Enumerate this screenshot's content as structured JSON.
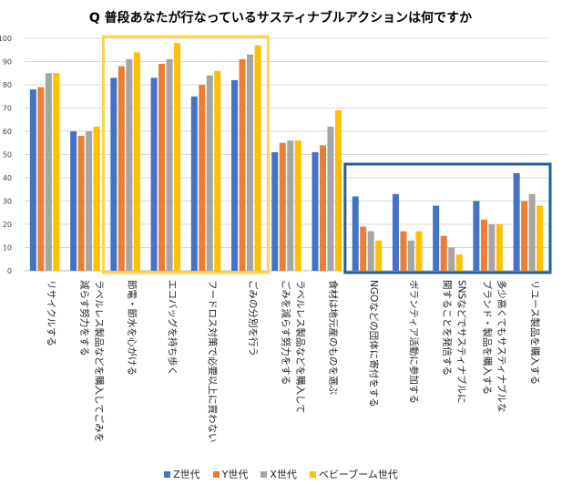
{
  "chart_data": {
    "type": "bar",
    "title": "Q 普段あなたが行なっているサスティナブルアクションは何ですか",
    "ylim": [
      0,
      100
    ],
    "yticks": [
      0,
      10,
      20,
      30,
      40,
      50,
      60,
      70,
      80,
      90,
      100
    ],
    "categories": [
      "リサイクルする",
      "ラベルレス製品などを購入してごみを減らす努力をする",
      "節電・節水を心がける",
      "エコバッグを持ち歩く",
      "フードロス対策で必要以上に買わない",
      "ごみの分別を行う",
      "ラベルレス製品などを購入してごみを減らす努力をする",
      "食材は地元産のものを選ぶ",
      "NGOなどの団体に寄付をする",
      "ボランティア活動に参加する",
      "SNSなどでサスティナブルに関することを発信する",
      "多少高くてもサスティナブルなブランド・製品を購入する",
      "リユース製品を購入する"
    ],
    "category_lines": [
      [
        "リサイクルする"
      ],
      [
        "ラベルレス製品などを購入してごみを",
        "減らす努力をする"
      ],
      [
        "節電・節水を心がける"
      ],
      [
        "エコバッグを持ち歩く"
      ],
      [
        "フードロス対策で必要以上に買わない"
      ],
      [
        "ごみの分別を行う"
      ],
      [
        "ラベルレス製品などを購入して",
        "ごみを減らす努力をする"
      ],
      [
        "食材は地元産のものを選ぶ"
      ],
      [
        "NGOなどの団体に寄付をする"
      ],
      [
        "ボランティア活動に参加する"
      ],
      [
        "SNSなどでサスティナブルに",
        "関することを発信する"
      ],
      [
        "多少高くてもサスティナブルな",
        "ブランド・製品を購入する"
      ],
      [
        "リユース製品を購入する"
      ]
    ],
    "series": [
      {
        "name": "Z世代",
        "color": "#4472C4",
        "values": [
          78,
          60,
          83,
          83,
          75,
          82,
          51,
          51,
          32,
          33,
          28,
          30,
          42
        ]
      },
      {
        "name": "Y世代",
        "color": "#ED7D31",
        "values": [
          79,
          58,
          88,
          89,
          80,
          91,
          55,
          54,
          19,
          17,
          15,
          22,
          30
        ]
      },
      {
        "name": "X世代",
        "color": "#A5A5A5",
        "values": [
          85,
          60,
          91,
          91,
          84,
          93,
          56,
          62,
          17,
          13,
          10,
          20,
          33
        ]
      },
      {
        "name": "ベビーブーム世代",
        "color": "#FFC000",
        "values": [
          85,
          62,
          94,
          98,
          86,
          97,
          56,
          69,
          13,
          17,
          7,
          20,
          28
        ]
      }
    ],
    "highlight_groups": [
      {
        "name": "yellow-highlight",
        "color": "#FFD54F",
        "from_category": 2,
        "to_category": 5
      },
      {
        "name": "blue-highlight",
        "color": "#1F5F99",
        "from_category": 8,
        "to_category": 12
      }
    ]
  }
}
